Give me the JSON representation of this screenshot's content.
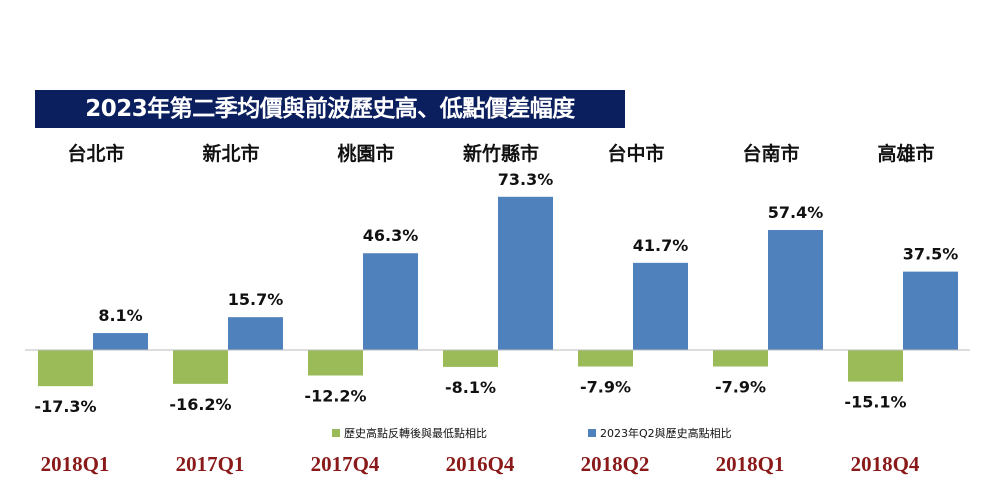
{
  "chart_data": {
    "type": "bar",
    "title": "2023年第二季均價與前波歷史高、低點價差幅度",
    "categories": [
      "台北市",
      "新北市",
      "桃園市",
      "新竹縣市",
      "台中市",
      "台南市",
      "高雄市"
    ],
    "period_labels": [
      "2018Q1",
      "2017Q1",
      "2017Q4",
      "2016Q4",
      "2018Q2",
      "2018Q1",
      "2018Q4"
    ],
    "series": [
      {
        "name": "歷史高點反轉後與最低點相比",
        "values": [
          -17.3,
          -16.2,
          -12.2,
          -8.1,
          -7.9,
          -7.9,
          -15.1
        ],
        "labels": [
          "-17.3%",
          "-16.2%",
          "-12.2%",
          "-8.1%",
          "-7.9%",
          "-7.9%",
          "-15.1%"
        ],
        "color": "#9bbb59"
      },
      {
        "name": "2023年Q2與歷史高點相比",
        "values": [
          8.1,
          15.7,
          46.3,
          73.3,
          41.7,
          57.4,
          37.5
        ],
        "labels": [
          "8.1%",
          "15.7%",
          "46.3%",
          "73.3%",
          "41.7%",
          "57.4%",
          "37.5%"
        ],
        "color": "#4f81bd"
      }
    ],
    "legend": "bottom-center",
    "grid": false,
    "unit": "%"
  }
}
